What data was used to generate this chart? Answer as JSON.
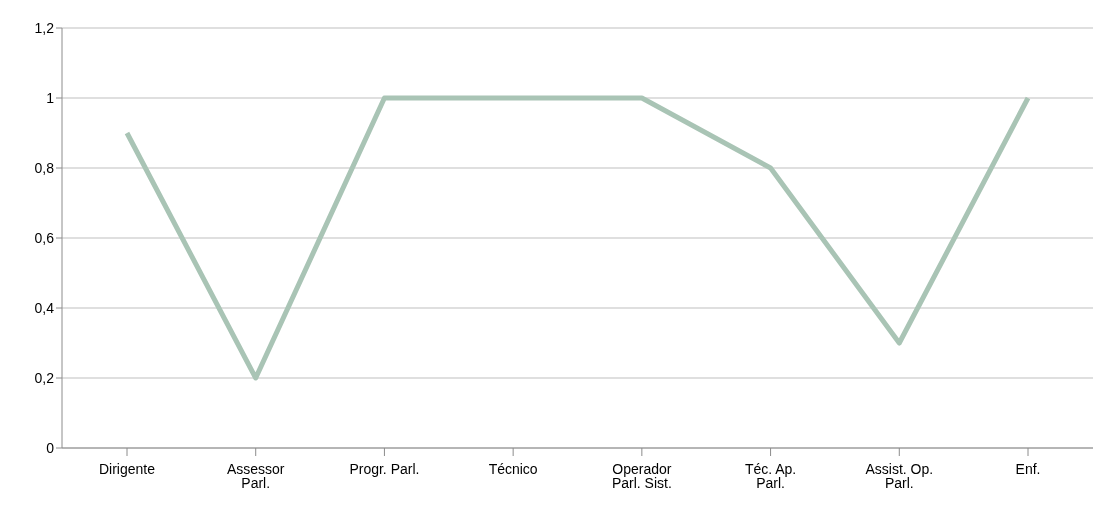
{
  "chart_data": {
    "type": "line",
    "categories": [
      "Dirigente",
      "Assessor Parl.",
      "Progr. Parl.",
      "Técnico",
      "Operador Parl. Sist.",
      "Téc. Ap. Parl.",
      "Assist. Op. Parl.",
      "Enf."
    ],
    "series": [
      {
        "color": "#a9c4b5",
        "values": [
          0.9,
          0.2,
          1,
          1,
          1,
          0.8,
          0.3,
          1
        ]
      }
    ],
    "ylim": [
      0,
      1.2
    ],
    "yticks": [
      0,
      {
        "value": 0.2,
        "label": "0,2"
      },
      {
        "value": 0.4,
        "label": "0,4"
      },
      {
        "value": 0.6,
        "label": "0,6"
      },
      {
        "value": 0.8,
        "label": "0,8"
      },
      1,
      {
        "value": 1.2,
        "label": "1,2"
      }
    ],
    "grid": "y",
    "legend": false,
    "marker": "none",
    "line_style": "solid"
  }
}
